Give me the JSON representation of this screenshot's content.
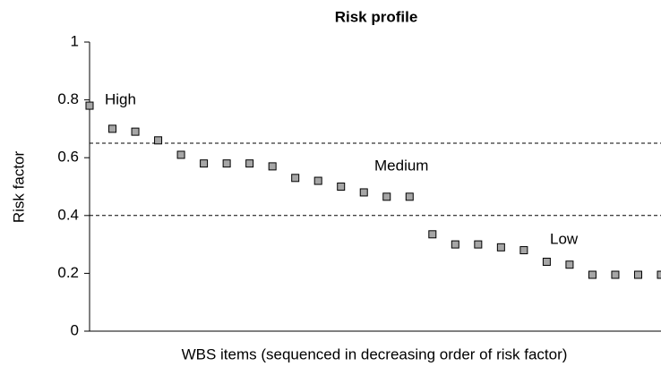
{
  "chart_data": {
    "type": "scatter",
    "title": "Risk profile",
    "x_label": "WBS items (sequenced in decreasing order of risk factor)",
    "y_label": "Risk factor",
    "categories": [
      null,
      null,
      null,
      null,
      null,
      null,
      null,
      null,
      null,
      null,
      null,
      null,
      null,
      null,
      null,
      null,
      null,
      null,
      null,
      null,
      null,
      null,
      null,
      null,
      null,
      null
    ],
    "values": [
      0.78,
      0.7,
      0.69,
      0.66,
      0.61,
      0.58,
      0.58,
      0.58,
      0.57,
      0.53,
      0.52,
      0.5,
      0.48,
      0.465,
      0.465,
      0.335,
      0.3,
      0.3,
      0.29,
      0.28,
      0.24,
      0.23,
      0.195,
      0.195,
      0.195,
      0.195
    ],
    "color": "#a6a6a6",
    "ylim": [
      0,
      1
    ],
    "yticks": [
      0,
      0.2,
      0.4,
      0.6,
      0.8,
      1
    ],
    "thresholds": [
      0.65,
      0.4
    ],
    "annotations": [
      "High",
      "Medium",
      "Low"
    ]
  }
}
